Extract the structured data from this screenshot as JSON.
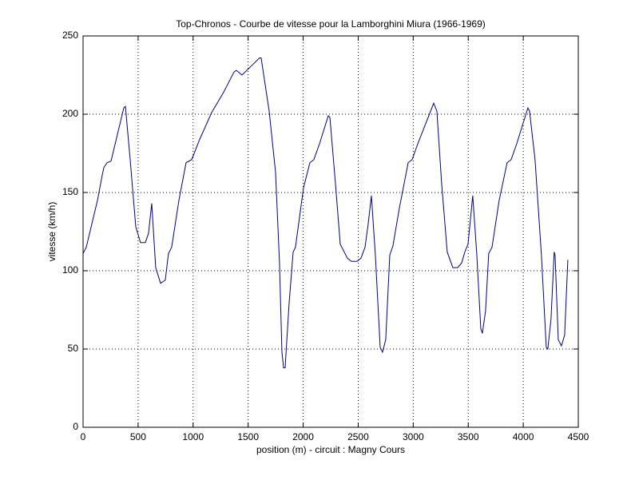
{
  "chart_data": {
    "type": "line",
    "title": "Top-Chronos - Courbe de vitesse pour la Lamborghini Miura (1966-1969)",
    "xlabel": "position (m) - circuit : Magny Cours",
    "ylabel": "vitesse (km/h)",
    "xlim": [
      0,
      4500
    ],
    "ylim": [
      0,
      250
    ],
    "xticks": [
      0,
      500,
      1000,
      1500,
      2000,
      2500,
      3000,
      3500,
      4000,
      4500
    ],
    "yticks": [
      0,
      50,
      100,
      150,
      200,
      250
    ],
    "grid": true,
    "series": [
      {
        "color": "#00008b",
        "x": [
          0,
          29,
          80,
          131,
          174,
          189,
          218,
          254,
          370,
          385,
          428,
          479,
          522,
          566,
          595,
          624,
          660,
          704,
          747,
          776,
          805,
          871,
          936,
          987,
          1060,
          1168,
          1277,
          1372,
          1393,
          1444,
          1604,
          1618,
          1691,
          1749,
          1785,
          1807,
          1822,
          1836,
          1872,
          1909,
          1930,
          2003,
          2061,
          2097,
          2148,
          2228,
          2243,
          2293,
          2337,
          2402,
          2438,
          2489,
          2525,
          2562,
          2591,
          2620,
          2656,
          2700,
          2721,
          2750,
          2787,
          2816,
          2874,
          2954,
          2990,
          3041,
          3186,
          3215,
          3258,
          3309,
          3360,
          3404,
          3440,
          3469,
          3498,
          3541,
          3578,
          3614,
          3628,
          3657,
          3686,
          3716,
          3781,
          3853,
          3890,
          3940,
          4042,
          4057,
          4107,
          4165,
          4209,
          4223,
          4252,
          4281,
          4289,
          4318,
          4347,
          4376,
          4405
        ],
        "values": [
          111,
          115,
          130,
          145,
          161,
          166,
          169,
          170,
          204,
          205,
          171,
          128,
          118,
          118,
          124,
          143,
          102,
          92,
          94,
          111,
          115,
          145,
          169,
          171,
          184,
          201,
          214,
          227,
          228,
          225,
          236,
          236,
          202,
          163,
          105,
          48,
          38,
          38,
          79,
          112,
          115,
          153,
          169,
          171,
          181,
          199,
          198,
          156,
          117,
          108,
          106,
          106,
          108,
          115,
          130,
          148,
          110,
          51,
          48,
          56,
          110,
          116,
          140,
          169,
          171,
          181,
          207,
          202,
          156,
          112,
          102,
          102,
          105,
          112,
          117,
          148,
          110,
          63,
          60,
          74,
          111,
          115,
          145,
          169,
          171,
          181,
          204,
          202,
          171,
          110,
          51,
          50,
          69,
          112,
          110,
          56,
          52,
          59,
          107
        ]
      }
    ]
  }
}
